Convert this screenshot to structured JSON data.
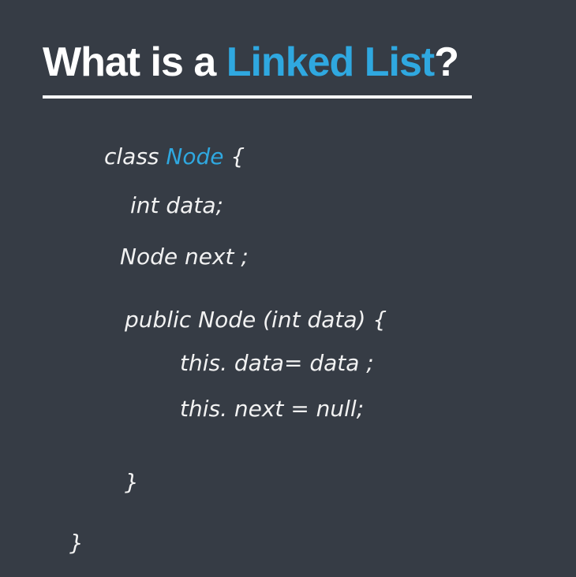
{
  "title": {
    "prefix": "What is a ",
    "highlight": "Linked List",
    "suffix": "?"
  },
  "code": {
    "line1": {
      "keyword": "class ",
      "name": "Node",
      "rest": " {"
    },
    "line2": "int data;",
    "line3": "Node next ;",
    "line4": "public Node (int data) {",
    "line5": "this. data= data ;",
    "line6": "this. next = null;",
    "line7": "}",
    "line8": "}"
  },
  "colors": {
    "background": "#363c45",
    "accent": "#2fa8e0",
    "text": "#ffffff"
  }
}
